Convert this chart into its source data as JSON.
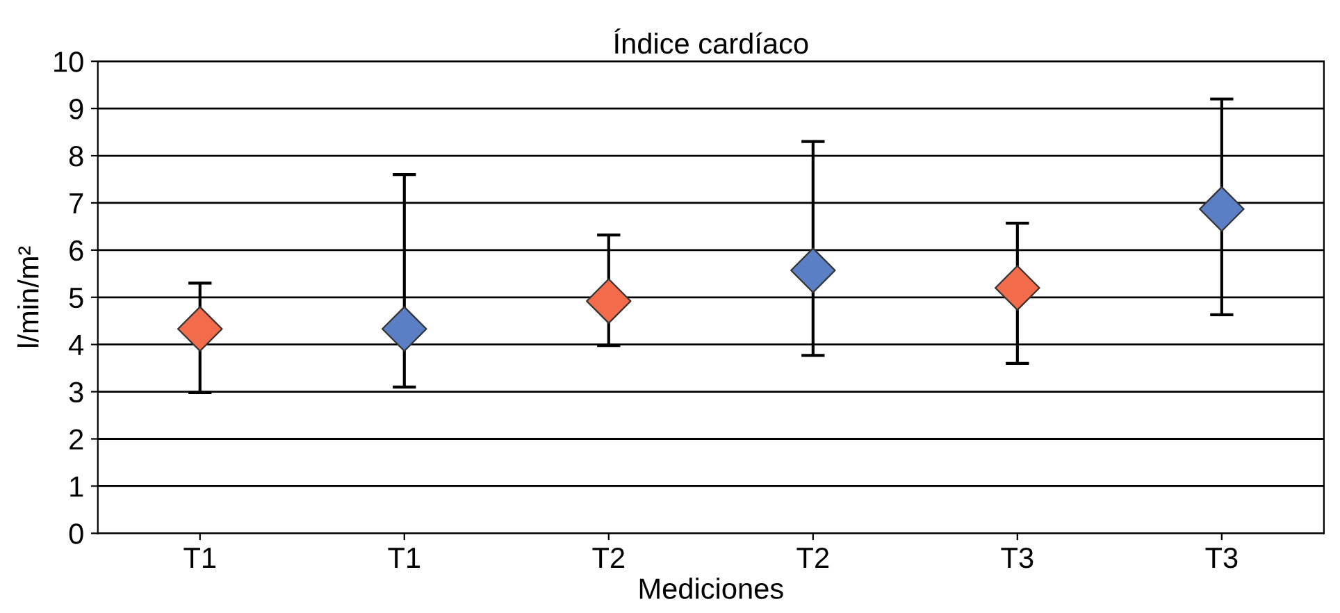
{
  "chart_data": {
    "type": "scatter",
    "title": "Índice cardíaco",
    "xlabel": "Mediciones",
    "ylabel": "l/min/m²",
    "categories": [
      "T1",
      "T1",
      "T2",
      "T2",
      "T3",
      "T3"
    ],
    "values": [
      4.33,
      4.33,
      4.92,
      5.57,
      5.2,
      6.87
    ],
    "colors": [
      "#f26b4b",
      "#5b7fc4",
      "#f26b4b",
      "#5b7fc4",
      "#f26b4b",
      "#5b7fc4"
    ],
    "errors": [
      [
        2.98,
        5.3
      ],
      [
        3.1,
        7.6
      ],
      [
        3.98,
        6.32
      ],
      [
        3.77,
        8.3
      ],
      [
        3.6,
        6.57
      ],
      [
        4.63,
        9.2
      ]
    ],
    "marker": "diamond",
    "ylim": [
      0,
      10
    ],
    "yticks": [
      0,
      1,
      2,
      3,
      4,
      5,
      6,
      7,
      8,
      9,
      10
    ],
    "grid": "y"
  }
}
